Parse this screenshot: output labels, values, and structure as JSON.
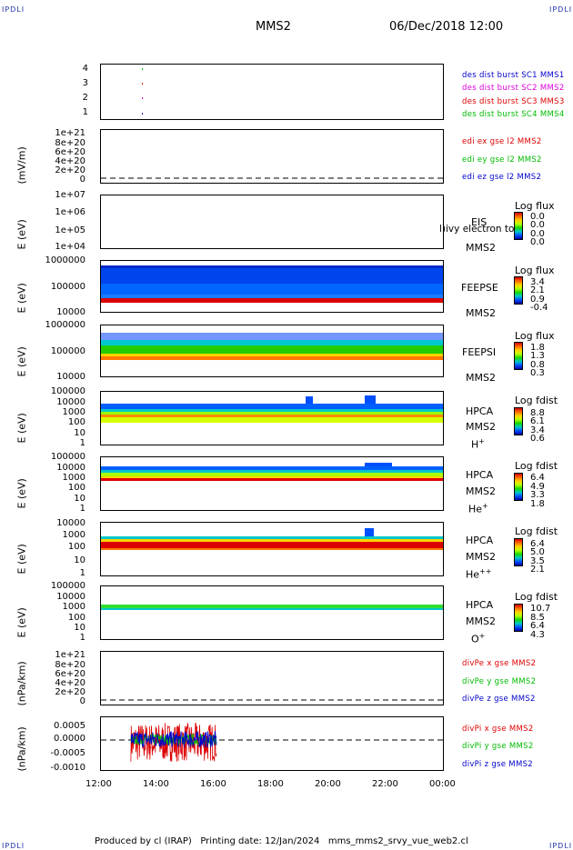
{
  "header": {
    "corner_label": "IPDLI",
    "spacecraft": "MMS2",
    "date_time": "06/Dec/2018 12:00"
  },
  "x_axis": {
    "ticks": [
      "12:00",
      "14:00",
      "16:00",
      "18:00",
      "20:00",
      "22:00",
      "00:00"
    ],
    "range_hours": [
      12,
      24
    ]
  },
  "panels": [
    {
      "id": "dist",
      "y_ticks": [
        "4",
        "3",
        "2",
        "1"
      ],
      "legend": [
        {
          "text": "des dist burst SC1 MMS1",
          "color": "#0000cc"
        },
        {
          "text": "des dist burst SC2 MMS2",
          "color": "#dd00dd"
        },
        {
          "text": "des dist burst SC3 MMS3",
          "color": "#dd0000"
        },
        {
          "text": "des dist burst SC4 MMS4",
          "color": "#00bb00"
        }
      ]
    },
    {
      "id": "edi",
      "ylabel": "(mV/m)",
      "y_ticks": [
        "1e+21",
        "8e+20",
        "6e+20",
        "4e+20",
        "2e+20",
        "0"
      ],
      "legend": [
        {
          "text": "edi ex gse l2 MMS2",
          "color": "#dd0000"
        },
        {
          "text": "edi ey gse l2 MMS2",
          "color": "#00bb00"
        },
        {
          "text": "edi ez gse l2 MMS2",
          "color": "#0000cc"
        }
      ]
    },
    {
      "id": "eis",
      "ylabel": "E (eV)",
      "y_ticks": [
        "1e+07",
        "1e+06",
        "1e+05",
        "1e+04"
      ],
      "instrument": "EIS",
      "instrument_extra": "l)ivy electron to",
      "sc": "MMS2",
      "cbar_title": "Log flux",
      "cbar_values": [
        "0.0",
        "0.0",
        "0.0",
        "0.0"
      ]
    },
    {
      "id": "feepse",
      "ylabel": "E (eV)",
      "y_ticks": [
        "1000000",
        "100000",
        "10000"
      ],
      "instrument": "FEEPSE",
      "sc": "MMS2",
      "cbar_title": "Log flux",
      "cbar_values": [
        "3.4",
        "2.1",
        "0.9",
        "-0.4"
      ]
    },
    {
      "id": "feepsi",
      "ylabel": "E (eV)",
      "y_ticks": [
        "1000000",
        "100000",
        "10000"
      ],
      "instrument": "FEEPSI",
      "sc": "MMS2",
      "cbar_title": "Log flux",
      "cbar_values": [
        "1.8",
        "1.3",
        "0.8",
        "0.3"
      ]
    },
    {
      "id": "hpca_h",
      "ylabel": "E (eV)",
      "y_ticks": [
        "100000",
        "10000",
        "1000",
        "100",
        "10",
        "1"
      ],
      "instrument": "HPCA",
      "sc": "MMS2",
      "species": "H",
      "species_sup": "+",
      "cbar_title": "Log fdist",
      "cbar_values": [
        "8.8",
        "6.1",
        "3.4",
        "0.6"
      ]
    },
    {
      "id": "hpca_he",
      "ylabel": "E (eV)",
      "y_ticks": [
        "100000",
        "10000",
        "1000",
        "100",
        "10",
        "1"
      ],
      "instrument": "HPCA",
      "sc": "MMS2",
      "species": "He",
      "species_sup": "+",
      "cbar_title": "Log fdist",
      "cbar_values": [
        "6.4",
        "4.9",
        "3.3",
        "1.8"
      ]
    },
    {
      "id": "hpca_he2",
      "ylabel": "E (eV)",
      "y_ticks": [
        "10000",
        "1000",
        "100",
        "10",
        "1"
      ],
      "instrument": "HPCA",
      "sc": "MMS2",
      "species": "He",
      "species_sup": "++",
      "cbar_title": "Log fdist",
      "cbar_values": [
        "6.4",
        "5.0",
        "3.5",
        "2.1"
      ]
    },
    {
      "id": "hpca_o",
      "ylabel": "E (eV)",
      "y_ticks": [
        "100000",
        "10000",
        "1000",
        "100",
        "10",
        "1"
      ],
      "instrument": "HPCA",
      "sc": "MMS2",
      "species": "O",
      "species_sup": "+",
      "cbar_title": "Log fdist",
      "cbar_values": [
        "10.7",
        "8.5",
        "6.4",
        "4.3"
      ]
    },
    {
      "id": "divpe",
      "ylabel": "(nPa/km)",
      "y_ticks": [
        "1e+21",
        "8e+20",
        "6e+20",
        "4e+20",
        "2e+20",
        "0"
      ],
      "legend": [
        {
          "text": "divPe x gse MMS2",
          "color": "#dd0000"
        },
        {
          "text": "divPe y gse MMS2",
          "color": "#00bb00"
        },
        {
          "text": "divPe z gse MMS2",
          "color": "#0000cc"
        }
      ]
    },
    {
      "id": "divpi",
      "ylabel": "(nPa/km)",
      "y_ticks": [
        "0.0005",
        "0.0000",
        "-0.0005",
        "-0.0010"
      ],
      "legend": [
        {
          "text": "divPi x gse MMS2",
          "color": "#dd0000"
        },
        {
          "text": "divPi y gse MMS2",
          "color": "#00bb00"
        },
        {
          "text": "divPi z gse MMS2",
          "color": "#0000cc"
        }
      ]
    }
  ],
  "chart_data": {
    "type": "line",
    "x_range_hours": [
      12,
      24
    ],
    "divpi_series": [
      {
        "name": "divPi x gse MMS2",
        "color": "#dd0000",
        "x_range": [
          13.05,
          16.05
        ],
        "y_range": [
          -0.0008,
          0.0006
        ]
      },
      {
        "name": "divPi y gse MMS2",
        "color": "#00bb00",
        "x_range": [
          13.05,
          16.05
        ],
        "y_range": [
          -0.0002,
          0.0002
        ]
      },
      {
        "name": "divPi z gse MMS2",
        "color": "#0000cc",
        "x_range": [
          13.05,
          16.05
        ],
        "y_range": [
          -0.0003,
          0.0003
        ]
      }
    ],
    "divpi_ylim": [
      -0.0011,
      0.0008
    ]
  },
  "footer": {
    "text": "Produced by cl (IRAP)   Printing date: 12/Jan/2024   mms_mms2_srvy_vue_web2.cl"
  }
}
